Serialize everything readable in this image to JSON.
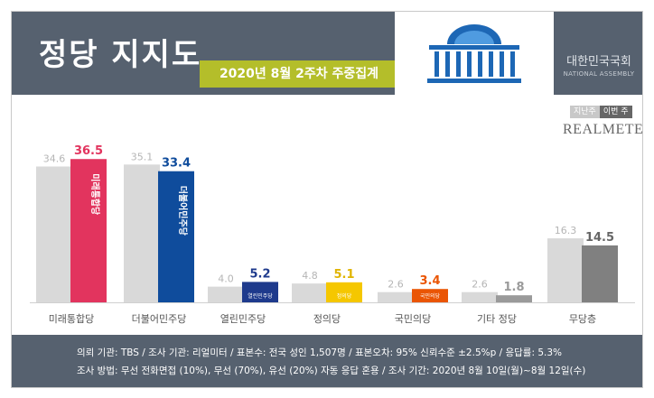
{
  "header": {
    "title": "정당 지지도",
    "date_badge": "2020년 8월 2주차 주중집계",
    "assembly_kr": "대한민국국회",
    "assembly_en": "NATIONAL ASSEMBLY"
  },
  "legend": {
    "prev": "지난주",
    "curr": "이번 주"
  },
  "brand": "REALMETER",
  "colors": {
    "prev_week": "#d9d9d9",
    "header_bg": "#56616f",
    "badge": "#b4be2a"
  },
  "chart_data": {
    "type": "bar",
    "title": "",
    "xlabel": "",
    "ylabel": "",
    "ylim": [
      0,
      40
    ],
    "categories": [
      "미래통합당",
      "더불어민주당",
      "열린민주당",
      "정의당",
      "국민의당",
      "기타 정당",
      "무당층"
    ],
    "series": [
      {
        "name": "지난주",
        "values": [
          34.6,
          35.1,
          4.0,
          4.8,
          2.6,
          2.6,
          16.3
        ]
      },
      {
        "name": "이번 주",
        "values": [
          36.5,
          33.4,
          5.2,
          5.1,
          3.4,
          1.8,
          14.5
        ]
      }
    ],
    "current_colors": [
      "#e2345e",
      "#0f4c9c",
      "#1e3a8c",
      "#f5c700",
      "#ea5504",
      "#9a9a9a",
      "#808080"
    ],
    "label_colors": [
      "#e2345e",
      "#0f4c9c",
      "#1e3a8c",
      "#e0b400",
      "#ea5504",
      "#9a9a9a",
      "#666666"
    ],
    "bar_inner_labels": [
      "미래통합당",
      "더불어민주당",
      "",
      "",
      "",
      "",
      ""
    ],
    "bar_logo_labels": [
      "",
      "",
      "열린민주당",
      "정의당",
      "국민의당",
      "",
      ""
    ]
  },
  "footer": {
    "line1": "의뢰 기관: TBS / 조사 기관: 리얼미터 / 표본수: 전국 성인 1,507명 / 표본오차: 95% 신뢰수준 ±2.5%p / 응답률: 5.3%",
    "line2": "조사 방법: 무선 전화면접 (10%), 무선 (70%), 유선 (20%) 자동 응답 혼용 / 조사 기간: 2020년 8월 10일(월)~8월 12일(수)"
  }
}
